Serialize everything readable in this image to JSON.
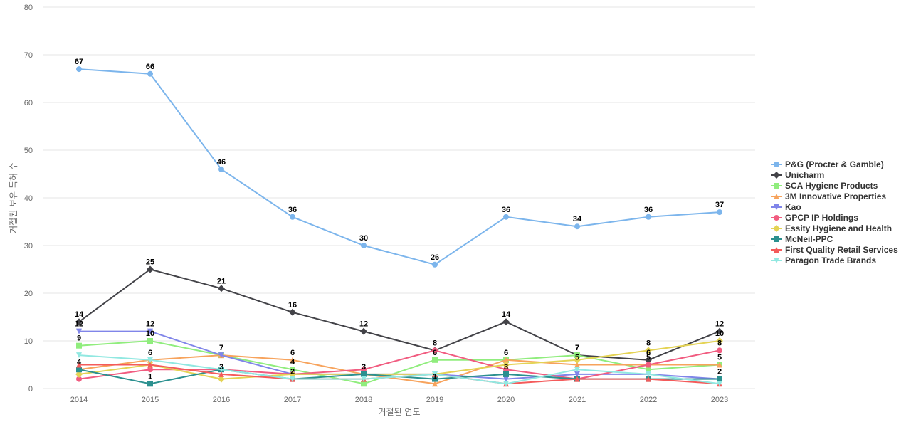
{
  "chart_data": {
    "type": "line",
    "title": "",
    "xlabel": "거절된 연도",
    "ylabel": "거절된 보유 특허 수",
    "ylim": [
      0,
      80
    ],
    "yticks": [
      0,
      10,
      20,
      30,
      40,
      50,
      60,
      70,
      80
    ],
    "grid": true,
    "legend_position": "right",
    "categories": [
      "2014",
      "2015",
      "2016",
      "2017",
      "2018",
      "2019",
      "2020",
      "2021",
      "2022",
      "2023"
    ],
    "series": [
      {
        "name": "P&G (Procter & Gamble)",
        "color": "#7cb5ec",
        "marker": "circle",
        "values": [
          67,
          66,
          46,
          36,
          30,
          26,
          36,
          34,
          36,
          37
        ]
      },
      {
        "name": "Unicharm",
        "color": "#434348",
        "marker": "diamond",
        "values": [
          14,
          25,
          21,
          16,
          12,
          8,
          14,
          7,
          6,
          12
        ]
      },
      {
        "name": "SCA Hygiene Products",
        "color": "#90ed7d",
        "marker": "square",
        "values": [
          9,
          10,
          7,
          4,
          1,
          6,
          6,
          7,
          4,
          5
        ]
      },
      {
        "name": "3M Innovative Properties",
        "color": "#f7a35c",
        "marker": "triangle",
        "values": [
          4,
          6,
          7,
          6,
          3,
          1,
          6,
          5,
          5,
          5
        ]
      },
      {
        "name": "Kao",
        "color": "#8085e9",
        "marker": "triangle-down",
        "values": [
          12,
          12,
          7,
          3,
          3,
          3,
          2,
          3,
          3,
          2
        ]
      },
      {
        "name": "GPCP IP Holdings",
        "color": "#f15c80",
        "marker": "circle",
        "values": [
          2,
          4,
          4,
          3,
          4,
          8,
          4,
          2,
          5,
          8
        ]
      },
      {
        "name": "Essity Hygiene and Health",
        "color": "#e4d354",
        "marker": "diamond",
        "values": [
          3,
          5,
          2,
          3,
          3,
          3,
          5,
          6,
          8,
          10
        ]
      },
      {
        "name": "McNeil-PPC",
        "color": "#2b908f",
        "marker": "square",
        "values": [
          4,
          1,
          4,
          2,
          3,
          2,
          3,
          2,
          2,
          2
        ]
      },
      {
        "name": "First Quality Retail Services",
        "color": "#f45b5b",
        "marker": "triangle",
        "values": [
          5,
          5,
          3,
          2,
          2,
          3,
          1,
          2,
          2,
          1
        ]
      },
      {
        "name": "Paragon Trade Brands",
        "color": "#91e8e1",
        "marker": "triangle-down",
        "values": [
          7,
          6,
          4,
          2,
          2,
          3,
          1,
          4,
          3,
          1
        ]
      }
    ],
    "data_labels": [
      {
        "series": 0,
        "points": [
          0,
          1,
          2,
          3,
          4,
          5,
          6,
          7,
          8,
          9
        ]
      },
      {
        "series": 1,
        "points": [
          0,
          1,
          2,
          3,
          4,
          5,
          6,
          7,
          8,
          9
        ]
      },
      {
        "series": 2,
        "points": [
          0,
          1,
          2,
          3,
          5,
          6,
          7,
          9
        ]
      },
      {
        "series": 3,
        "points": [
          0,
          1,
          3,
          5,
          6,
          7,
          8
        ]
      },
      {
        "series": 4,
        "points": [
          0,
          1,
          2,
          4,
          9
        ]
      },
      {
        "series": 5,
        "points": [
          9
        ]
      },
      {
        "series": 6,
        "points": [
          8,
          9
        ]
      },
      {
        "series": 7,
        "points": [
          1,
          3,
          6
        ]
      },
      {
        "series": 8,
        "points": [
          2
        ]
      },
      {
        "series": 9,
        "points": []
      }
    ]
  }
}
